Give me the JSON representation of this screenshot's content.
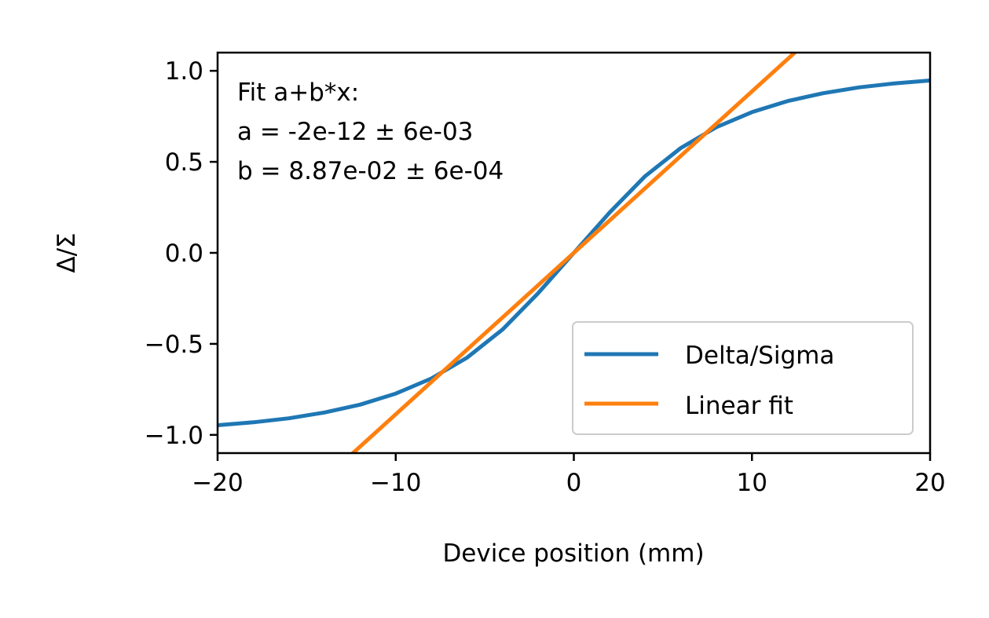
{
  "chart_data": {
    "type": "line",
    "xlabel": "Device position (mm)",
    "ylabel": "Δ/Σ",
    "xlim": [
      -20,
      20
    ],
    "ylim": [
      -1.1,
      1.1
    ],
    "xticks": [
      -20,
      -10,
      0,
      10,
      20
    ],
    "xtick_labels": [
      "−20",
      "−10",
      "0",
      "10",
      "20"
    ],
    "yticks": [
      -1.0,
      -0.5,
      0.0,
      0.5,
      1.0
    ],
    "ytick_labels": [
      "−1.0",
      "−0.5",
      "0.0",
      "0.5",
      "1.0"
    ],
    "grid": false,
    "legend_position": "lower-right",
    "annotation": [
      "Fit a+b*x:",
      "a = -2e-12 ± 6e-03",
      "b = 8.87e-02 ± 6e-04"
    ],
    "series": [
      {
        "name": "Delta/Sigma",
        "color": "#1f77b4",
        "x": [
          -20,
          -18,
          -16,
          -14,
          -12,
          -10,
          -8,
          -6,
          -4,
          -2,
          0,
          2,
          4,
          6,
          8,
          10,
          12,
          14,
          16,
          18,
          20
        ],
        "y": [
          -0.947,
          -0.931,
          -0.909,
          -0.877,
          -0.834,
          -0.773,
          -0.69,
          -0.576,
          -0.421,
          -0.221,
          0.0,
          0.221,
          0.421,
          0.576,
          0.69,
          0.773,
          0.834,
          0.877,
          0.909,
          0.931,
          0.947
        ]
      },
      {
        "name": "Linear fit",
        "color": "#ff7f0e",
        "x": [
          -20,
          20
        ],
        "y": [
          -1.774,
          1.774
        ]
      }
    ]
  }
}
